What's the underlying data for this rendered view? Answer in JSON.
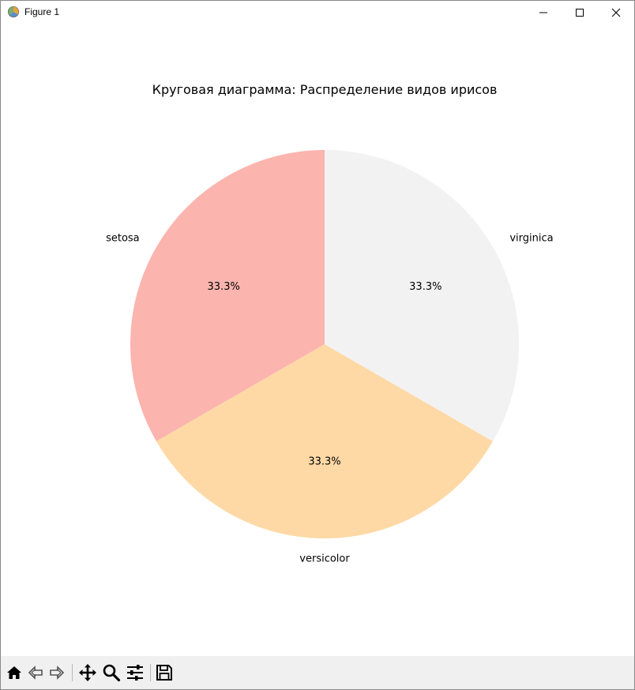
{
  "window": {
    "title": "Figure 1"
  },
  "toolbar": {
    "buttons": [
      {
        "name": "home-button",
        "icon": "home-icon"
      },
      {
        "name": "back-button",
        "icon": "back-arrow-icon"
      },
      {
        "name": "forward-button",
        "icon": "forward-arrow-icon"
      },
      {
        "name": "pan-button",
        "icon": "move-icon"
      },
      {
        "name": "zoom-button",
        "icon": "magnifier-icon"
      },
      {
        "name": "configure-subplots-button",
        "icon": "sliders-icon"
      },
      {
        "name": "save-button",
        "icon": "floppy-disk-icon"
      }
    ]
  },
  "chart_data": {
    "type": "pie",
    "title": "Круговая диаграмма: Распределение видов ирисов",
    "labels": [
      "setosa",
      "versicolor",
      "virginica"
    ],
    "values": [
      33.3,
      33.3,
      33.3
    ],
    "pct_labels": [
      "33.3%",
      "33.3%",
      "33.3%"
    ],
    "colors": [
      "#fbb4ae",
      "#fed9a6",
      "#f2f2f2"
    ],
    "startangle_deg": 90
  }
}
